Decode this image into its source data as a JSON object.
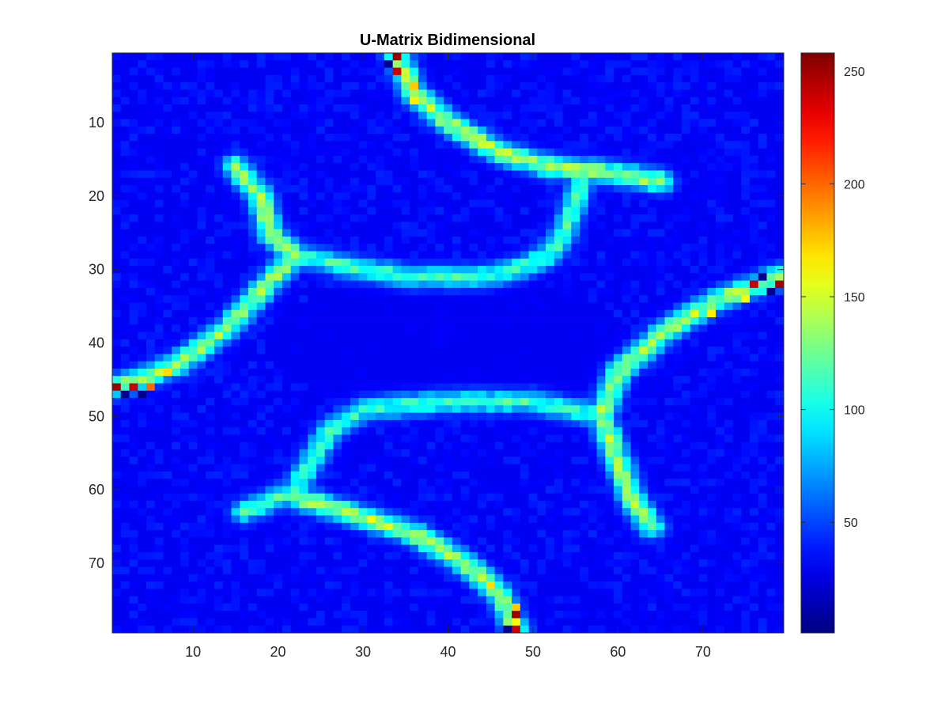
{
  "chart_data": {
    "type": "heatmap",
    "title": "U-Matrix Bidimensional",
    "xlabel": "",
    "ylabel": "",
    "grid_size": [
      79,
      79
    ],
    "xlim": [
      0.5,
      79.5
    ],
    "ylim": [
      0.5,
      79.5
    ],
    "y_direction": "reverse",
    "x_ticks": [
      10,
      20,
      30,
      40,
      50,
      60,
      70
    ],
    "y_ticks": [
      10,
      20,
      30,
      40,
      50,
      60,
      70
    ],
    "colormap": "jet",
    "color_limits": [
      1,
      258
    ],
    "colorbar_ticks": [
      50,
      100,
      150,
      200,
      250
    ],
    "grid": false,
    "background_level": 30,
    "ridges": [
      {
        "points": [
          [
            34,
            1
          ],
          [
            36,
            6
          ],
          [
            40,
            10
          ],
          [
            46,
            14
          ],
          [
            52,
            16
          ],
          [
            60,
            17
          ],
          [
            65,
            18
          ]
        ],
        "peak": 105
      },
      {
        "points": [
          [
            56,
            17
          ],
          [
            54,
            24
          ],
          [
            52,
            28
          ],
          [
            48,
            30
          ],
          [
            44,
            31
          ],
          [
            36,
            31
          ],
          [
            30,
            30
          ],
          [
            22,
            28
          ]
        ],
        "peak": 80
      },
      {
        "points": [
          [
            15,
            16
          ],
          [
            18,
            20
          ],
          [
            19,
            25
          ],
          [
            22,
            28
          ],
          [
            18,
            33
          ],
          [
            14,
            38
          ],
          [
            8,
            43
          ],
          [
            1,
            46
          ]
        ],
        "peak": 100
      },
      {
        "points": [
          [
            79,
            31
          ],
          [
            72,
            34
          ],
          [
            66,
            38
          ],
          [
            60,
            44
          ],
          [
            58,
            50
          ],
          [
            60,
            56
          ],
          [
            62,
            62
          ],
          [
            64,
            65
          ]
        ],
        "peak": 105
      },
      {
        "points": [
          [
            58,
            50
          ],
          [
            50,
            48
          ],
          [
            40,
            48
          ],
          [
            30,
            49
          ],
          [
            26,
            52
          ],
          [
            24,
            56
          ],
          [
            22,
            60
          ],
          [
            18,
            62
          ],
          [
            16,
            63
          ]
        ],
        "peak": 80
      },
      {
        "points": [
          [
            22,
            61
          ],
          [
            28,
            63
          ],
          [
            36,
            66
          ],
          [
            42,
            70
          ],
          [
            46,
            74
          ],
          [
            48,
            79
          ]
        ],
        "peak": 105
      }
    ],
    "hot_cells": [
      {
        "x": 34,
        "y": 1,
        "value": 250
      },
      {
        "x": 33,
        "y": 2,
        "value": 5
      },
      {
        "x": 34,
        "y": 3,
        "value": 240
      },
      {
        "x": 36,
        "y": 5,
        "value": 175
      },
      {
        "x": 36,
        "y": 7,
        "value": 165
      },
      {
        "x": 1,
        "y": 46,
        "value": 250
      },
      {
        "x": 2,
        "y": 47,
        "value": 5
      },
      {
        "x": 3,
        "y": 46,
        "value": 240
      },
      {
        "x": 4,
        "y": 47,
        "value": 5
      },
      {
        "x": 5,
        "y": 46,
        "value": 200
      },
      {
        "x": 7,
        "y": 44,
        "value": 170
      },
      {
        "x": 76,
        "y": 32,
        "value": 240
      },
      {
        "x": 77,
        "y": 31,
        "value": 5
      },
      {
        "x": 79,
        "y": 32,
        "value": 250
      },
      {
        "x": 78,
        "y": 33,
        "value": 5
      },
      {
        "x": 75,
        "y": 34,
        "value": 160
      },
      {
        "x": 71,
        "y": 36,
        "value": 165
      },
      {
        "x": 48,
        "y": 76,
        "value": 175
      },
      {
        "x": 48,
        "y": 77,
        "value": 250
      },
      {
        "x": 48,
        "y": 78,
        "value": 160
      },
      {
        "x": 48,
        "y": 79,
        "value": 240
      },
      {
        "x": 47,
        "y": 79,
        "value": 5
      },
      {
        "x": 31,
        "y": 64,
        "value": 160
      },
      {
        "x": 45,
        "y": 73,
        "value": 170
      }
    ]
  }
}
